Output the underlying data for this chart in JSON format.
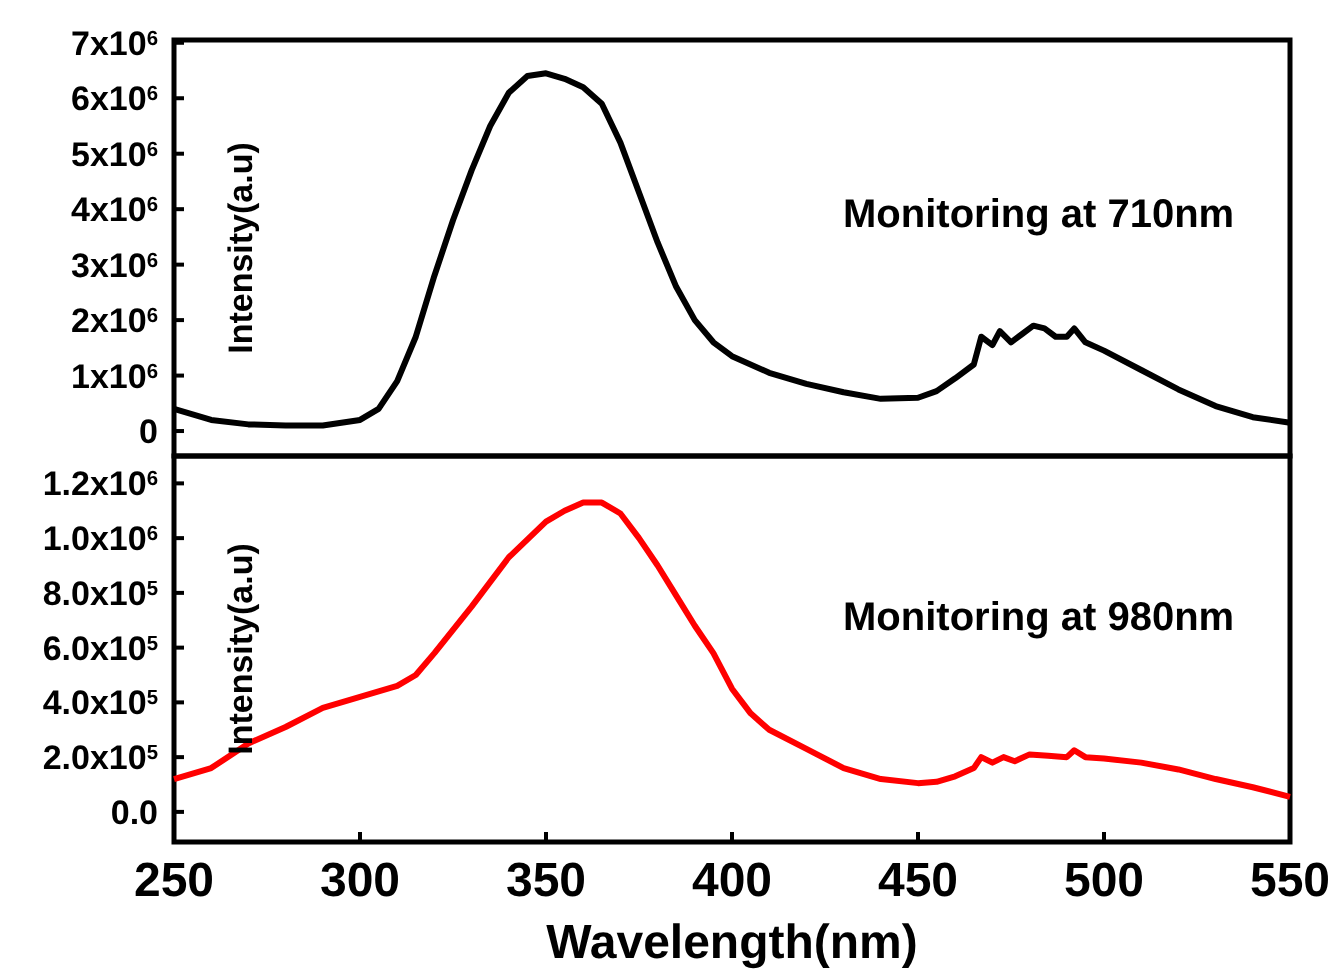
{
  "chart_data": [
    {
      "type": "line",
      "ylabel": "Intensity(a.u)",
      "annotations": [
        "Monitoring at 710nm"
      ],
      "xlim": [
        250,
        550
      ],
      "tick_labels": "y",
      "ylim": [
        -450000,
        7050000
      ],
      "yticks": [
        {
          "value": 0,
          "label": "0"
        },
        {
          "value": 1000000,
          "label": "1x10$^{6}$"
        },
        {
          "value": 2000000,
          "label": "2x10$^{6}$"
        },
        {
          "value": 3000000,
          "label": "3x10$^{6}$"
        },
        {
          "value": 4000000,
          "label": "4x10$^{6}$"
        },
        {
          "value": 5000000,
          "label": "5x10$^{6}$"
        },
        {
          "value": 6000000,
          "label": "6x10$^{6}$"
        },
        {
          "value": 7000000,
          "label": "7x10$^{6}$"
        }
      ],
      "x": [
        250,
        260,
        270,
        280,
        290,
        300,
        305,
        310,
        315,
        320,
        325,
        330,
        335,
        340,
        345,
        350,
        355,
        360,
        365,
        370,
        375,
        380,
        385,
        390,
        395,
        400,
        410,
        420,
        430,
        440,
        450,
        455,
        460,
        465,
        467,
        470,
        472,
        475,
        478,
        481,
        484,
        487,
        490,
        492,
        495,
        500,
        510,
        520,
        530,
        540,
        550
      ],
      "series": [
        {
          "color": "#000000",
          "values": [
            400000,
            200000,
            120000,
            100000,
            100000,
            200000,
            400000,
            900000,
            1700000,
            2800000,
            3800000,
            4700000,
            5500000,
            6100000,
            6400000,
            6450000,
            6350000,
            6200000,
            5900000,
            5200000,
            4300000,
            3400000,
            2600000,
            2000000,
            1600000,
            1350000,
            1050000,
            850000,
            700000,
            580000,
            600000,
            720000,
            950000,
            1200000,
            1700000,
            1550000,
            1800000,
            1600000,
            1750000,
            1900000,
            1850000,
            1700000,
            1700000,
            1850000,
            1600000,
            1450000,
            1100000,
            750000,
            450000,
            250000,
            150000
          ]
        }
      ]
    },
    {
      "type": "line",
      "ylabel": "Intensity(a.u)",
      "xlabel": "Wavelength(nm)",
      "annotations": [
        "Monitoring at 980nm"
      ],
      "xlim": [
        250,
        550
      ],
      "xticks": [
        250,
        300,
        350,
        400,
        450,
        500,
        550
      ],
      "ylim": [
        -110000,
        1300000
      ],
      "yticks": [
        {
          "value": 0,
          "label": "0.0"
        },
        {
          "value": 200000,
          "label": "2.0x10$^{5}$"
        },
        {
          "value": 400000,
          "label": "4.0x10$^{5}$"
        },
        {
          "value": 600000,
          "label": "6.0x10$^{5}$"
        },
        {
          "value": 800000,
          "label": "8.0x10$^{5}$"
        },
        {
          "value": 1000000,
          "label": "1.0x10$^{6}$"
        },
        {
          "value": 1200000,
          "label": "1.2x10$^{6}$"
        }
      ],
      "x": [
        250,
        260,
        270,
        280,
        290,
        300,
        310,
        315,
        320,
        330,
        340,
        350,
        355,
        360,
        365,
        370,
        375,
        380,
        385,
        390,
        395,
        400,
        405,
        410,
        420,
        430,
        440,
        450,
        455,
        460,
        465,
        467,
        470,
        473,
        476,
        480,
        485,
        490,
        492,
        495,
        500,
        510,
        520,
        530,
        540,
        550
      ],
      "series": [
        {
          "color": "#ff0000",
          "values": [
            120000,
            160000,
            250000,
            310000,
            380000,
            420000,
            460000,
            500000,
            580000,
            750000,
            930000,
            1060000,
            1100000,
            1130000,
            1130000,
            1090000,
            1000000,
            900000,
            790000,
            680000,
            580000,
            450000,
            360000,
            300000,
            230000,
            160000,
            120000,
            105000,
            110000,
            130000,
            160000,
            200000,
            180000,
            200000,
            185000,
            210000,
            205000,
            200000,
            225000,
            200000,
            195000,
            180000,
            155000,
            120000,
            90000,
            55000
          ]
        }
      ]
    }
  ]
}
